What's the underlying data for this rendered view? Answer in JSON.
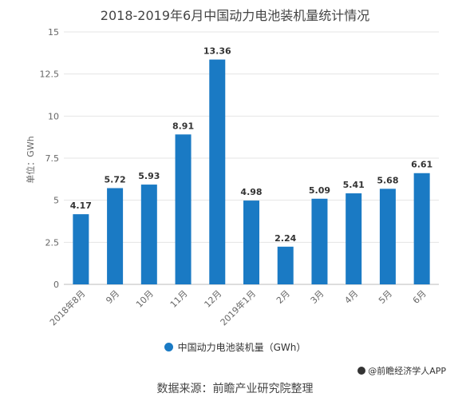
{
  "chart_data": {
    "type": "bar",
    "title": "2018-2019年6月中国动力电池装机量统计情况",
    "ylabel": "单位：GWh",
    "xlabel": "",
    "categories": [
      "2018年8月",
      "9月",
      "10月",
      "11月",
      "12月",
      "2019年1月",
      "2月",
      "3月",
      "4月",
      "5月",
      "6月"
    ],
    "series": [
      {
        "name": "中国动力电池装机量（GWh）",
        "values": [
          4.17,
          5.72,
          5.93,
          8.91,
          13.36,
          4.98,
          2.24,
          5.09,
          5.41,
          5.68,
          6.61
        ],
        "labels": [
          "4.17",
          "5.72",
          "5.93",
          "8.91",
          "13.36",
          "4.98",
          "2.24",
          "5.09",
          "5.41",
          "5.68",
          "6.61"
        ]
      }
    ],
    "ylim": [
      0,
      15
    ],
    "yticks": [
      "0",
      "2.5",
      "5",
      "7.5",
      "10",
      "12.5",
      "15"
    ],
    "grid": true,
    "legend_position": "bottom",
    "bar_color": "#1a7ac4"
  },
  "footer": {
    "watermark": "@前瞻经济学人APP",
    "source": "数据来源：前瞻产业研究院整理"
  }
}
